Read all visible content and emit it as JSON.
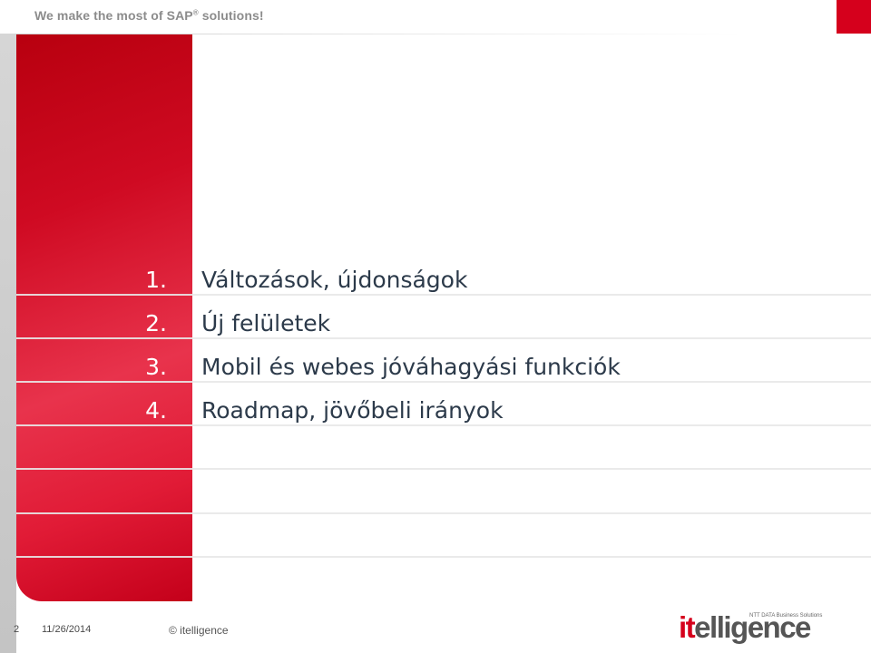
{
  "header": {
    "tagline": "We make the most of SAP",
    "tagline_mark": "®",
    "tagline_end": " solutions!"
  },
  "agenda": [
    {
      "number": "1.",
      "text": "Változások, újdonságok"
    },
    {
      "number": "2.",
      "text": "Új felületek"
    },
    {
      "number": "3.",
      "text": "Mobil és webes jóváhagyási funkciók"
    },
    {
      "number": "4.",
      "text": "Roadmap, jövőbeli irányok"
    }
  ],
  "footer": {
    "page_number": "2",
    "date": "11/26/2014",
    "copyright": "© itelligence"
  },
  "logo": {
    "word_accent": "it",
    "word_rest": "elligence",
    "tagline": "NTT DATA Business Solutions"
  },
  "colors": {
    "brand_red": "#d5001c",
    "text_dark": "#2c3a4a",
    "gray": "#8c8c8c"
  }
}
